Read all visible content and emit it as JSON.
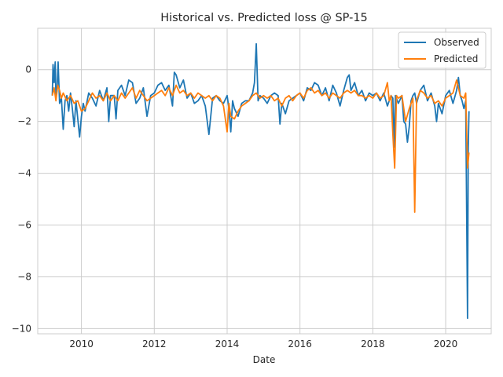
{
  "chart_data": {
    "type": "line",
    "title": "Historical vs. Predicted loss @ SP-15",
    "xlabel": "Date",
    "ylabel": "",
    "xlim": [
      2008.8,
      2021.25
    ],
    "ylim": [
      -10.2,
      1.6
    ],
    "x_ticks": [
      2010,
      2012,
      2014,
      2016,
      2018,
      2020
    ],
    "x_tick_labels": [
      "2010",
      "2012",
      "2014",
      "2016",
      "2018",
      "2020"
    ],
    "y_ticks": [
      0,
      -2,
      -4,
      -6,
      -8,
      -10
    ],
    "y_tick_labels": [
      "0",
      "−2",
      "−4",
      "−6",
      "−8",
      "−10"
    ],
    "grid": true,
    "legend": {
      "placement": "top-right",
      "entries": [
        "Observed",
        "Predicted"
      ]
    },
    "series": [
      {
        "name": "Observed",
        "color": "#1f77b4",
        "points": [
          [
            2009.2,
            -1.0
          ],
          [
            2009.22,
            0.2
          ],
          [
            2009.25,
            -0.5
          ],
          [
            2009.28,
            0.3
          ],
          [
            2009.3,
            -1.0
          ],
          [
            2009.33,
            -0.8
          ],
          [
            2009.36,
            0.3
          ],
          [
            2009.4,
            -1.3
          ],
          [
            2009.45,
            -1.1
          ],
          [
            2009.5,
            -2.3
          ],
          [
            2009.55,
            -1.2
          ],
          [
            2009.6,
            -1.0
          ],
          [
            2009.65,
            -1.6
          ],
          [
            2009.7,
            -0.9
          ],
          [
            2009.75,
            -1.5
          ],
          [
            2009.8,
            -2.2
          ],
          [
            2009.85,
            -1.2
          ],
          [
            2009.9,
            -1.9
          ],
          [
            2009.95,
            -2.6
          ],
          [
            2010.0,
            -1.8
          ],
          [
            2010.05,
            -1.3
          ],
          [
            2010.1,
            -1.6
          ],
          [
            2010.2,
            -0.9
          ],
          [
            2010.3,
            -1.1
          ],
          [
            2010.4,
            -1.4
          ],
          [
            2010.5,
            -0.8
          ],
          [
            2010.6,
            -1.2
          ],
          [
            2010.7,
            -0.7
          ],
          [
            2010.75,
            -2.0
          ],
          [
            2010.8,
            -1.0
          ],
          [
            2010.9,
            -1.0
          ],
          [
            2010.95,
            -1.9
          ],
          [
            2011.0,
            -0.8
          ],
          [
            2011.1,
            -0.6
          ],
          [
            2011.2,
            -1.0
          ],
          [
            2011.3,
            -0.4
          ],
          [
            2011.4,
            -0.5
          ],
          [
            2011.5,
            -1.3
          ],
          [
            2011.6,
            -1.1
          ],
          [
            2011.7,
            -0.7
          ],
          [
            2011.8,
            -1.8
          ],
          [
            2011.9,
            -1.0
          ],
          [
            2012.0,
            -0.9
          ],
          [
            2012.1,
            -0.6
          ],
          [
            2012.2,
            -0.5
          ],
          [
            2012.3,
            -0.8
          ],
          [
            2012.4,
            -0.6
          ],
          [
            2012.5,
            -1.4
          ],
          [
            2012.55,
            -0.1
          ],
          [
            2012.6,
            -0.2
          ],
          [
            2012.7,
            -0.7
          ],
          [
            2012.8,
            -0.4
          ],
          [
            2012.9,
            -1.1
          ],
          [
            2013.0,
            -0.9
          ],
          [
            2013.1,
            -1.3
          ],
          [
            2013.2,
            -1.2
          ],
          [
            2013.3,
            -1.0
          ],
          [
            2013.4,
            -1.4
          ],
          [
            2013.5,
            -2.5
          ],
          [
            2013.6,
            -1.1
          ],
          [
            2013.7,
            -1.0
          ],
          [
            2013.8,
            -1.2
          ],
          [
            2013.9,
            -1.3
          ],
          [
            2014.0,
            -1.0
          ],
          [
            2014.05,
            -1.5
          ],
          [
            2014.1,
            -2.4
          ],
          [
            2014.15,
            -1.2
          ],
          [
            2014.2,
            -1.5
          ],
          [
            2014.3,
            -1.8
          ],
          [
            2014.4,
            -1.3
          ],
          [
            2014.5,
            -1.2
          ],
          [
            2014.6,
            -1.2
          ],
          [
            2014.7,
            -0.9
          ],
          [
            2014.75,
            -0.5
          ],
          [
            2014.8,
            1.0
          ],
          [
            2014.85,
            -1.2
          ],
          [
            2014.9,
            -1.0
          ],
          [
            2015.0,
            -1.1
          ],
          [
            2015.1,
            -1.3
          ],
          [
            2015.2,
            -1.0
          ],
          [
            2015.3,
            -0.9
          ],
          [
            2015.4,
            -1.0
          ],
          [
            2015.45,
            -2.1
          ],
          [
            2015.5,
            -1.3
          ],
          [
            2015.6,
            -1.7
          ],
          [
            2015.7,
            -1.2
          ],
          [
            2015.8,
            -1.1
          ],
          [
            2015.9,
            -1.0
          ],
          [
            2016.0,
            -0.9
          ],
          [
            2016.1,
            -1.2
          ],
          [
            2016.2,
            -0.7
          ],
          [
            2016.3,
            -0.8
          ],
          [
            2016.4,
            -0.5
          ],
          [
            2016.5,
            -0.6
          ],
          [
            2016.6,
            -1.0
          ],
          [
            2016.7,
            -0.7
          ],
          [
            2016.8,
            -1.2
          ],
          [
            2016.9,
            -0.6
          ],
          [
            2017.0,
            -0.9
          ],
          [
            2017.1,
            -1.4
          ],
          [
            2017.2,
            -0.8
          ],
          [
            2017.3,
            -0.3
          ],
          [
            2017.35,
            -0.2
          ],
          [
            2017.4,
            -0.8
          ],
          [
            2017.5,
            -0.5
          ],
          [
            2017.6,
            -1.0
          ],
          [
            2017.7,
            -0.8
          ],
          [
            2017.8,
            -1.2
          ],
          [
            2017.9,
            -0.9
          ],
          [
            2018.0,
            -1.0
          ],
          [
            2018.1,
            -0.9
          ],
          [
            2018.2,
            -1.2
          ],
          [
            2018.3,
            -0.9
          ],
          [
            2018.4,
            -1.4
          ],
          [
            2018.5,
            -1.0
          ],
          [
            2018.55,
            -1.1
          ],
          [
            2018.58,
            -3.0
          ],
          [
            2018.62,
            -1.0
          ],
          [
            2018.7,
            -1.3
          ],
          [
            2018.8,
            -1.0
          ],
          [
            2018.85,
            -2.0
          ],
          [
            2018.9,
            -2.1
          ],
          [
            2018.95,
            -2.8
          ],
          [
            2019.0,
            -2.2
          ],
          [
            2019.05,
            -1.2
          ],
          [
            2019.1,
            -1.0
          ],
          [
            2019.15,
            -0.9
          ],
          [
            2019.2,
            -1.3
          ],
          [
            2019.3,
            -0.8
          ],
          [
            2019.4,
            -0.6
          ],
          [
            2019.5,
            -1.2
          ],
          [
            2019.6,
            -0.9
          ],
          [
            2019.7,
            -1.4
          ],
          [
            2019.75,
            -2.0
          ],
          [
            2019.8,
            -1.3
          ],
          [
            2019.9,
            -1.7
          ],
          [
            2020.0,
            -1.0
          ],
          [
            2020.1,
            -0.8
          ],
          [
            2020.2,
            -1.3
          ],
          [
            2020.3,
            -0.8
          ],
          [
            2020.35,
            -0.3
          ],
          [
            2020.4,
            -1.0
          ],
          [
            2020.45,
            -1.2
          ],
          [
            2020.5,
            -1.5
          ],
          [
            2020.55,
            -1.2
          ],
          [
            2020.6,
            -9.6
          ],
          [
            2020.62,
            -3.0
          ],
          [
            2020.64,
            -1.6
          ]
        ]
      },
      {
        "name": "Predicted",
        "color": "#ff7f0e",
        "points": [
          [
            2009.2,
            -1.0
          ],
          [
            2009.25,
            -0.7
          ],
          [
            2009.3,
            -1.2
          ],
          [
            2009.35,
            -0.6
          ],
          [
            2009.4,
            -0.8
          ],
          [
            2009.45,
            -1.1
          ],
          [
            2009.5,
            -0.9
          ],
          [
            2009.6,
            -1.2
          ],
          [
            2009.7,
            -1.0
          ],
          [
            2009.8,
            -1.3
          ],
          [
            2009.9,
            -1.2
          ],
          [
            2010.0,
            -1.6
          ],
          [
            2010.1,
            -1.5
          ],
          [
            2010.2,
            -1.2
          ],
          [
            2010.3,
            -0.9
          ],
          [
            2010.4,
            -1.1
          ],
          [
            2010.5,
            -1.0
          ],
          [
            2010.6,
            -1.2
          ],
          [
            2010.7,
            -0.9
          ],
          [
            2010.8,
            -1.2
          ],
          [
            2010.9,
            -1.0
          ],
          [
            2011.0,
            -1.2
          ],
          [
            2011.1,
            -0.9
          ],
          [
            2011.2,
            -1.1
          ],
          [
            2011.3,
            -0.9
          ],
          [
            2011.4,
            -0.7
          ],
          [
            2011.5,
            -1.1
          ],
          [
            2011.6,
            -0.8
          ],
          [
            2011.7,
            -1.0
          ],
          [
            2011.8,
            -1.2
          ],
          [
            2011.9,
            -1.1
          ],
          [
            2012.0,
            -1.0
          ],
          [
            2012.1,
            -0.9
          ],
          [
            2012.2,
            -0.8
          ],
          [
            2012.3,
            -1.0
          ],
          [
            2012.4,
            -0.7
          ],
          [
            2012.5,
            -1.0
          ],
          [
            2012.6,
            -0.6
          ],
          [
            2012.7,
            -0.9
          ],
          [
            2012.8,
            -0.8
          ],
          [
            2012.9,
            -1.0
          ],
          [
            2013.0,
            -0.9
          ],
          [
            2013.1,
            -1.1
          ],
          [
            2013.2,
            -0.9
          ],
          [
            2013.3,
            -1.0
          ],
          [
            2013.4,
            -1.1
          ],
          [
            2013.5,
            -1.0
          ],
          [
            2013.6,
            -1.2
          ],
          [
            2013.7,
            -1.0
          ],
          [
            2013.8,
            -1.1
          ],
          [
            2013.9,
            -1.4
          ],
          [
            2014.0,
            -2.4
          ],
          [
            2014.05,
            -1.3
          ],
          [
            2014.1,
            -1.8
          ],
          [
            2014.2,
            -1.9
          ],
          [
            2014.3,
            -1.6
          ],
          [
            2014.4,
            -1.4
          ],
          [
            2014.5,
            -1.3
          ],
          [
            2014.6,
            -1.2
          ],
          [
            2014.7,
            -1.0
          ],
          [
            2014.8,
            -0.9
          ],
          [
            2014.9,
            -1.1
          ],
          [
            2015.0,
            -1.0
          ],
          [
            2015.1,
            -1.1
          ],
          [
            2015.2,
            -1.0
          ],
          [
            2015.3,
            -1.2
          ],
          [
            2015.4,
            -1.1
          ],
          [
            2015.5,
            -1.4
          ],
          [
            2015.6,
            -1.1
          ],
          [
            2015.7,
            -1.0
          ],
          [
            2015.8,
            -1.2
          ],
          [
            2015.9,
            -1.0
          ],
          [
            2016.0,
            -0.9
          ],
          [
            2016.1,
            -1.1
          ],
          [
            2016.2,
            -0.8
          ],
          [
            2016.3,
            -0.7
          ],
          [
            2016.4,
            -0.9
          ],
          [
            2016.5,
            -0.8
          ],
          [
            2016.6,
            -1.0
          ],
          [
            2016.7,
            -0.9
          ],
          [
            2016.8,
            -1.1
          ],
          [
            2016.9,
            -0.9
          ],
          [
            2017.0,
            -1.0
          ],
          [
            2017.1,
            -1.1
          ],
          [
            2017.2,
            -0.9
          ],
          [
            2017.3,
            -0.8
          ],
          [
            2017.4,
            -0.9
          ],
          [
            2017.5,
            -0.8
          ],
          [
            2017.6,
            -1.0
          ],
          [
            2017.7,
            -1.0
          ],
          [
            2017.8,
            -1.1
          ],
          [
            2017.9,
            -1.0
          ],
          [
            2018.0,
            -1.1
          ],
          [
            2018.1,
            -0.9
          ],
          [
            2018.2,
            -1.1
          ],
          [
            2018.3,
            -1.0
          ],
          [
            2018.4,
            -0.5
          ],
          [
            2018.45,
            -1.2
          ],
          [
            2018.5,
            -1.0
          ],
          [
            2018.55,
            -2.5
          ],
          [
            2018.6,
            -3.8
          ],
          [
            2018.65,
            -1.0
          ],
          [
            2018.7,
            -1.1
          ],
          [
            2018.8,
            -1.0
          ],
          [
            2018.9,
            -2.0
          ],
          [
            2019.0,
            -1.5
          ],
          [
            2019.1,
            -1.1
          ],
          [
            2019.15,
            -5.5
          ],
          [
            2019.2,
            -1.2
          ],
          [
            2019.3,
            -0.8
          ],
          [
            2019.4,
            -0.9
          ],
          [
            2019.5,
            -1.1
          ],
          [
            2019.6,
            -1.0
          ],
          [
            2019.7,
            -1.3
          ],
          [
            2019.8,
            -1.2
          ],
          [
            2019.9,
            -1.4
          ],
          [
            2020.0,
            -1.1
          ],
          [
            2020.1,
            -1.0
          ],
          [
            2020.2,
            -0.9
          ],
          [
            2020.3,
            -0.4
          ],
          [
            2020.4,
            -1.0
          ],
          [
            2020.5,
            -1.1
          ],
          [
            2020.55,
            -0.9
          ],
          [
            2020.6,
            -3.8
          ],
          [
            2020.64,
            -3.2
          ]
        ]
      }
    ]
  }
}
